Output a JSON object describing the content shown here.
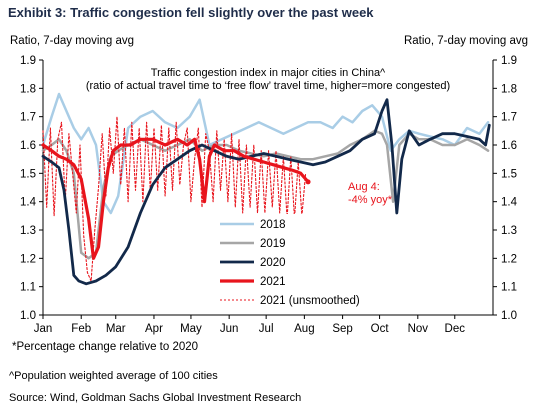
{
  "exhibit_title": "Exhibit 3: Traffic congestion fell slightly over the past week",
  "footnotes": {
    "population": "^Population weighted average of 100 cities",
    "source": "Source: Wind, Goldman Sachs Global Investment Research"
  },
  "chart_data": {
    "type": "line",
    "title": "Traffic congestion index in major cities in China^",
    "subtitle": "(ratio of actual travel time to ‘free flow’ travel time, higher=more congested)",
    "ylabel_left": "Ratio, 7-day moving avg",
    "ylabel_right": "Ratio, 7-day moving avg",
    "ylim": [
      1.0,
      1.9
    ],
    "yticks": [
      "1.0",
      "1.1",
      "1.2",
      "1.3",
      "1.4",
      "1.5",
      "1.6",
      "1.7",
      "1.8",
      "1.9"
    ],
    "months": [
      "Jan",
      "Feb",
      "Mar",
      "Apr",
      "May",
      "Jun",
      "Jul",
      "Aug",
      "Sep",
      "Oct",
      "Nov",
      "Dec"
    ],
    "x_unit": "day of year",
    "grid": false,
    "legend_position": "bottom-center",
    "annotation": {
      "text_line1": "Aug 4:",
      "text_line2": "-4% yoy*",
      "x": 216,
      "y": 1.47,
      "color": "#e8141c"
    },
    "footnote_chart": "*Percentage change relative to 2020",
    "series": [
      {
        "name": "2018",
        "color": "#a9cde6",
        "width": 2.5,
        "dash": "",
        "x": [
          1,
          8,
          14,
          20,
          26,
          32,
          38,
          44,
          50,
          56,
          62,
          70,
          80,
          90,
          100,
          110,
          120,
          128,
          136,
          146,
          156,
          166,
          176,
          186,
          196,
          206,
          216,
          226,
          236,
          244,
          252,
          260,
          268,
          276,
          283,
          290,
          298,
          306,
          315,
          325,
          335,
          345,
          355,
          362
        ],
        "y": [
          1.6,
          1.7,
          1.78,
          1.72,
          1.66,
          1.62,
          1.66,
          1.6,
          1.4,
          1.36,
          1.42,
          1.66,
          1.7,
          1.72,
          1.68,
          1.66,
          1.7,
          1.76,
          1.6,
          1.62,
          1.64,
          1.66,
          1.68,
          1.66,
          1.64,
          1.66,
          1.68,
          1.68,
          1.66,
          1.7,
          1.68,
          1.72,
          1.74,
          1.7,
          1.58,
          1.62,
          1.65,
          1.64,
          1.63,
          1.62,
          1.6,
          1.66,
          1.64,
          1.68
        ]
      },
      {
        "name": "2019",
        "color": "#a6a6a6",
        "width": 2.5,
        "dash": "",
        "x": [
          1,
          8,
          14,
          20,
          26,
          32,
          38,
          44,
          50,
          56,
          62,
          70,
          80,
          90,
          100,
          110,
          120,
          130,
          140,
          150,
          160,
          170,
          180,
          190,
          200,
          210,
          220,
          230,
          240,
          250,
          260,
          270,
          276,
          280,
          285,
          290,
          298,
          306,
          315,
          325,
          335,
          345,
          355,
          362
        ],
        "y": [
          1.58,
          1.6,
          1.62,
          1.58,
          1.5,
          1.22,
          1.2,
          1.22,
          1.45,
          1.56,
          1.58,
          1.6,
          1.62,
          1.6,
          1.58,
          1.6,
          1.62,
          1.58,
          1.6,
          1.6,
          1.58,
          1.57,
          1.56,
          1.57,
          1.56,
          1.55,
          1.55,
          1.56,
          1.57,
          1.6,
          1.62,
          1.65,
          1.64,
          1.6,
          1.4,
          1.6,
          1.64,
          1.62,
          1.62,
          1.6,
          1.6,
          1.62,
          1.6,
          1.58
        ]
      },
      {
        "name": "2020",
        "color": "#12294a",
        "width": 2.8,
        "dash": "",
        "x": [
          1,
          8,
          14,
          18,
          22,
          26,
          30,
          36,
          44,
          52,
          60,
          70,
          80,
          90,
          100,
          110,
          120,
          130,
          140,
          150,
          160,
          170,
          180,
          190,
          200,
          210,
          220,
          230,
          240,
          250,
          260,
          270,
          276,
          280,
          284,
          288,
          292,
          298,
          306,
          315,
          325,
          335,
          345,
          355,
          360,
          363
        ],
        "y": [
          1.56,
          1.54,
          1.52,
          1.44,
          1.3,
          1.14,
          1.12,
          1.11,
          1.12,
          1.14,
          1.17,
          1.24,
          1.36,
          1.46,
          1.52,
          1.55,
          1.58,
          1.6,
          1.58,
          1.56,
          1.55,
          1.56,
          1.57,
          1.56,
          1.55,
          1.54,
          1.53,
          1.54,
          1.56,
          1.58,
          1.62,
          1.64,
          1.72,
          1.76,
          1.6,
          1.36,
          1.55,
          1.65,
          1.6,
          1.62,
          1.64,
          1.64,
          1.63,
          1.62,
          1.6,
          1.67
        ]
      },
      {
        "name": "2021",
        "color": "#e8141c",
        "width": 3.2,
        "dash": "",
        "x": [
          1,
          8,
          14,
          20,
          26,
          32,
          38,
          42,
          46,
          50,
          54,
          58,
          64,
          72,
          80,
          90,
          100,
          110,
          118,
          124,
          128,
          132,
          136,
          140,
          148,
          156,
          164,
          172,
          180,
          188,
          196,
          204,
          210,
          214,
          216
        ],
        "y": [
          1.6,
          1.58,
          1.56,
          1.55,
          1.53,
          1.48,
          1.34,
          1.2,
          1.24,
          1.4,
          1.52,
          1.58,
          1.6,
          1.6,
          1.62,
          1.62,
          1.6,
          1.62,
          1.6,
          1.62,
          1.55,
          1.4,
          1.56,
          1.6,
          1.58,
          1.58,
          1.56,
          1.55,
          1.54,
          1.53,
          1.52,
          1.51,
          1.5,
          1.48,
          1.47
        ]
      },
      {
        "name": "2021 (unsmoothed)",
        "color": "#e8141c",
        "width": 1.1,
        "dash": "2,2",
        "x": [
          1,
          4,
          7,
          10,
          13,
          16,
          19,
          22,
          25,
          28,
          31,
          34,
          37,
          40,
          43,
          46,
          49,
          52,
          55,
          58,
          61,
          64,
          67,
          70,
          73,
          76,
          79,
          82,
          85,
          88,
          91,
          94,
          97,
          100,
          103,
          106,
          109,
          112,
          115,
          118,
          121,
          124,
          127,
          130,
          133,
          136,
          139,
          142,
          145,
          148,
          151,
          154,
          157,
          160,
          163,
          166,
          169,
          172,
          175,
          178,
          181,
          184,
          187,
          190,
          193,
          196,
          199,
          202,
          205,
          208,
          211,
          214
        ],
        "y": [
          1.65,
          1.38,
          1.66,
          1.35,
          1.62,
          1.68,
          1.4,
          1.64,
          1.5,
          1.36,
          1.6,
          1.28,
          1.15,
          1.12,
          1.3,
          1.45,
          1.64,
          1.42,
          1.66,
          1.5,
          1.7,
          1.46,
          1.66,
          1.4,
          1.68,
          1.44,
          1.66,
          1.4,
          1.68,
          1.44,
          1.66,
          1.44,
          1.67,
          1.42,
          1.66,
          1.44,
          1.68,
          1.46,
          1.6,
          1.66,
          1.4,
          1.55,
          1.66,
          1.38,
          1.64,
          1.58,
          1.4,
          1.65,
          1.44,
          1.62,
          1.4,
          1.64,
          1.38,
          1.62,
          1.36,
          1.6,
          1.38,
          1.6,
          1.36,
          1.58,
          1.36,
          1.58,
          1.38,
          1.58,
          1.36,
          1.56,
          1.34,
          1.56,
          1.34,
          1.54,
          1.35,
          1.5
        ]
      }
    ]
  }
}
